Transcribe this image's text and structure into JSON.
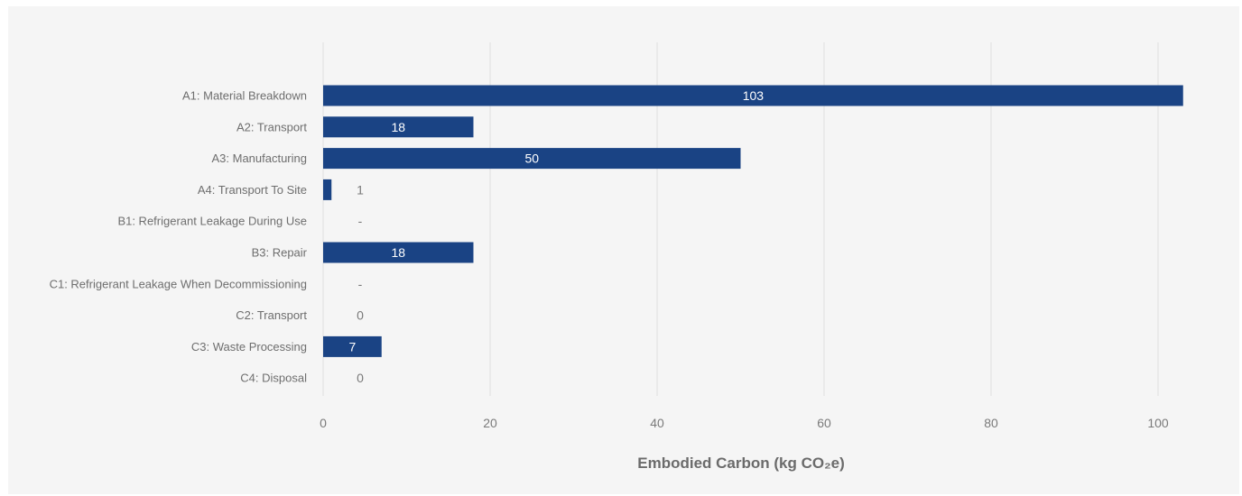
{
  "chart_data": {
    "type": "bar",
    "orientation": "horizontal",
    "categories": [
      "A1: Material Breakdown",
      "A2: Transport",
      "A3: Manufacturing",
      "A4: Transport To Site",
      "B1: Refrigerant Leakage During Use",
      "B3: Repair",
      "C1: Refrigerant Leakage When Decommissioning",
      "C2: Transport",
      "C3: Waste Processing",
      "C4: Disposal"
    ],
    "values": [
      103,
      18,
      50,
      1,
      null,
      18,
      null,
      0,
      7,
      0
    ],
    "data_labels": [
      "103",
      "18",
      "50",
      "1",
      "-",
      "18",
      "-",
      "0",
      "7",
      "0"
    ],
    "xlabel": "Embodied Carbon (kg CO₂e)",
    "ylabel": "",
    "xlim": [
      0,
      105
    ],
    "xticks": [
      0,
      20,
      40,
      60,
      80,
      100
    ],
    "xtick_labels": [
      "0",
      "20",
      "40",
      "60",
      "80",
      "100"
    ],
    "grid": "vertical",
    "legend": "none",
    "colors": {
      "bar": "#1a4384",
      "background": "#f5f5f5",
      "grid": "#e0e0e0",
      "inside_label": "#ffffff",
      "outside_label": "#7a7a7a"
    }
  }
}
